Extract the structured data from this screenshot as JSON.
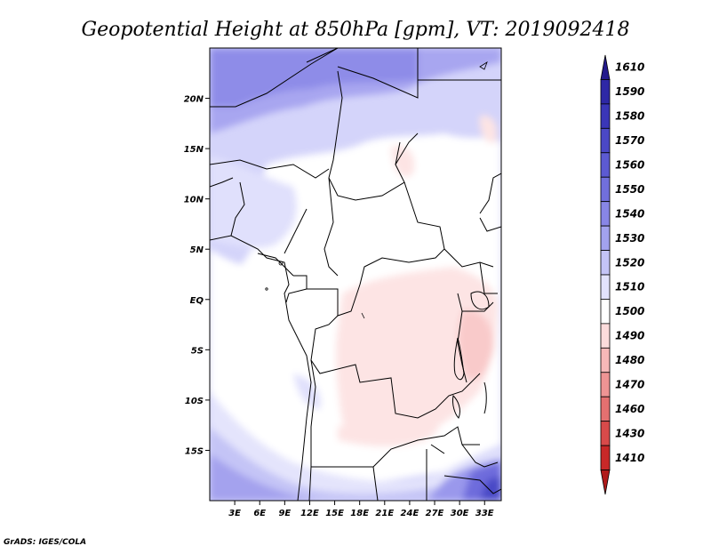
{
  "title": "Geopotential Height at 850hPa [gpm], VT: 2019092418",
  "credit": "GrADS: IGES/COLA",
  "map": {
    "lat_ticks": [
      "20N",
      "15N",
      "10N",
      "5N",
      "EQ",
      "5S",
      "10S",
      "15S"
    ],
    "lat_values": [
      20,
      15,
      10,
      5,
      0,
      -5,
      -10,
      -15
    ],
    "lon_ticks": [
      "3E",
      "6E",
      "9E",
      "12E",
      "15E",
      "18E",
      "21E",
      "24E",
      "27E",
      "30E",
      "33E"
    ],
    "lon_values": [
      3,
      6,
      9,
      12,
      15,
      18,
      21,
      24,
      27,
      30,
      33
    ],
    "lon_range": [
      0,
      35
    ],
    "lat_range": [
      -20,
      25
    ]
  },
  "colorbar": {
    "levels": [
      "1610",
      "1590",
      "1580",
      "1570",
      "1560",
      "1550",
      "1540",
      "1530",
      "1520",
      "1510",
      "1500",
      "1490",
      "1480",
      "1470",
      "1460",
      "1430",
      "1410"
    ],
    "colors": [
      "#241a8c",
      "#2e28a6",
      "#3a36b8",
      "#4b48c6",
      "#5c5ad2",
      "#716fdc",
      "#8886e6",
      "#a2a2ee",
      "#c4c4f6",
      "#e2e2fc",
      "#ffffff",
      "#fcdcdc",
      "#f6b8b8",
      "#ee9494",
      "#e47070",
      "#d84a4a",
      "#c82828",
      "#b01a1a"
    ]
  }
}
